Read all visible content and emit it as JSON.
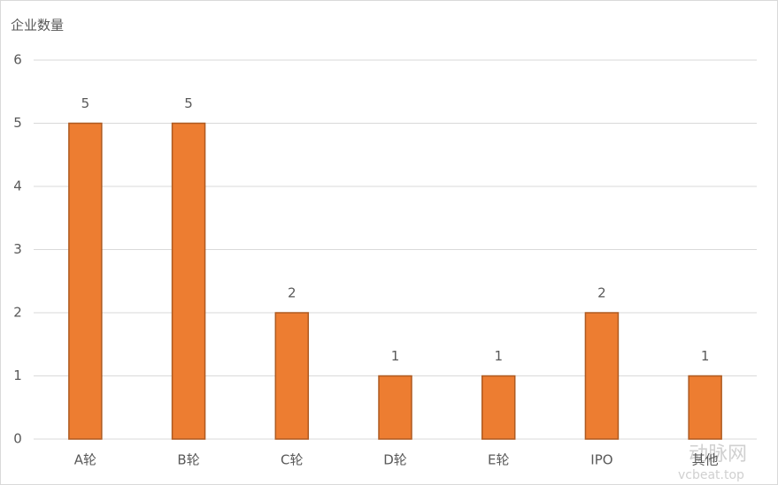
{
  "chart_data": {
    "type": "bar",
    "y_label": "企业数量",
    "categories": [
      "A轮",
      "B轮",
      "C轮",
      "D轮",
      "E轮",
      "IPO",
      "其他"
    ],
    "values": [
      5,
      5,
      2,
      1,
      1,
      2,
      1
    ],
    "color": "#ed7d31",
    "ylim": [
      0,
      6
    ],
    "yticks": [
      0,
      1,
      2,
      3,
      4,
      5,
      6
    ],
    "grid": true,
    "data_labels": true
  },
  "watermark": {
    "logo": "动脉网",
    "url": "vcbeat.top"
  }
}
